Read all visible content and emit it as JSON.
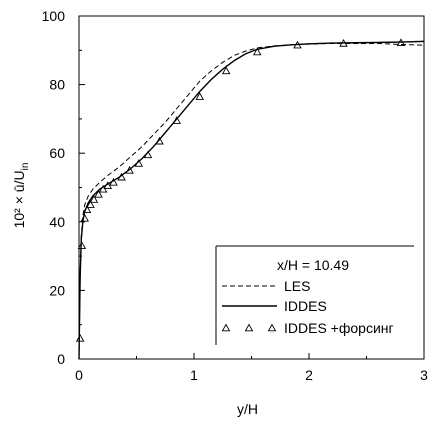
{
  "chart_data": {
    "type": "line",
    "xlabel": "y/H",
    "ylabel": "10² × ū/U",
    "ylabel_sub": "in",
    "xlim": [
      0,
      3
    ],
    "ylim": [
      0,
      100
    ],
    "xticks": [
      0,
      1,
      2,
      3
    ],
    "yticks": [
      0,
      20,
      40,
      60,
      80,
      100
    ],
    "grid": false,
    "legend": {
      "placement": "bottom-right",
      "title": "x/H = 10.49"
    },
    "series": [
      {
        "name": "LES",
        "style": "dashed",
        "x": [
          0,
          0.01,
          0.02,
          0.035,
          0.05,
          0.08,
          0.12,
          0.18,
          0.25,
          0.35,
          0.45,
          0.55,
          0.65,
          0.75,
          0.85,
          0.95,
          1.05,
          1.15,
          1.25,
          1.35,
          1.45,
          1.55,
          1.7,
          1.85,
          2.0,
          2.2,
          2.4,
          2.6,
          2.8,
          3.0
        ],
        "y": [
          0,
          24,
          36,
          42,
          45,
          47.5,
          49.5,
          51.5,
          53.5,
          56,
          59,
          62,
          65.5,
          69,
          73,
          77,
          81,
          84,
          86.5,
          88.5,
          89.8,
          90.7,
          91.3,
          91.6,
          91.8,
          92,
          92,
          92,
          91.7,
          91.5
        ]
      },
      {
        "name": "IDDES",
        "style": "solid",
        "x": [
          0,
          0.01,
          0.02,
          0.035,
          0.05,
          0.08,
          0.12,
          0.18,
          0.25,
          0.35,
          0.45,
          0.55,
          0.65,
          0.75,
          0.85,
          0.95,
          1.05,
          1.15,
          1.25,
          1.35,
          1.45,
          1.55,
          1.7,
          1.85,
          2.0,
          2.2,
          2.4,
          2.6,
          2.8,
          3.0
        ],
        "y": [
          0,
          24,
          35,
          40.5,
          43,
          45.5,
          47.5,
          49.5,
          51,
          53,
          55.5,
          58.5,
          62,
          66,
          70,
          74,
          78,
          81.5,
          84.5,
          87,
          89,
          90.3,
          91.2,
          91.6,
          91.9,
          92.1,
          92.2,
          92.3,
          92.4,
          92.6
        ]
      },
      {
        "name": "IDDES +форсинг",
        "style": "triangle",
        "x": [
          0.01,
          0.025,
          0.05,
          0.07,
          0.1,
          0.13,
          0.17,
          0.21,
          0.25,
          0.3,
          0.37,
          0.44,
          0.52,
          0.6,
          0.7,
          0.85,
          1.05,
          1.28,
          1.55,
          1.9,
          2.3,
          2.8
        ],
        "y": [
          6,
          33,
          41,
          43.5,
          45,
          46.5,
          48,
          49.5,
          50.5,
          51.5,
          53,
          55,
          57,
          59.5,
          63.5,
          69.5,
          76.5,
          84,
          89.5,
          91.5,
          92,
          92.2
        ]
      }
    ]
  }
}
